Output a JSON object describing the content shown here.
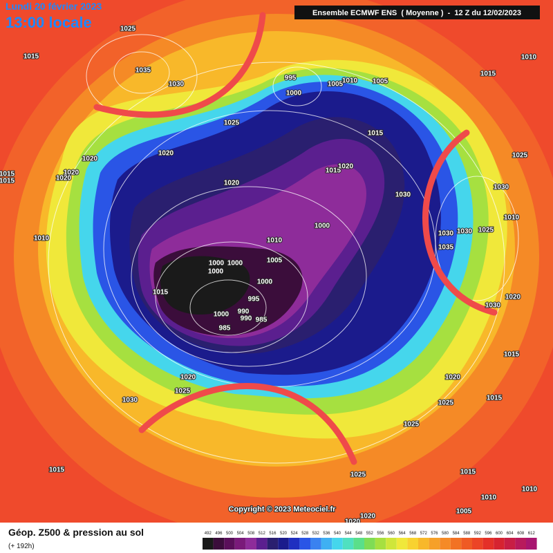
{
  "header": {
    "date": "Lundi 20 février 2023",
    "time": "13:00 locale",
    "run": "Ensemble ECMWF ENS  ( Moyenne )  -  12 Z du 12/02/2023"
  },
  "footer": {
    "title": "Géop. Z500 & pression au sol",
    "lead": "(+ 192h)",
    "copyright": "Copyright © 2023 Meteociel.fr"
  },
  "legend": {
    "values": [
      492,
      496,
      500,
      504,
      508,
      512,
      516,
      520,
      524,
      528,
      532,
      536,
      540,
      544,
      548,
      552,
      556,
      560,
      564,
      568,
      572,
      576,
      580,
      584,
      588,
      592,
      596,
      600,
      604,
      608,
      612
    ],
    "colors": [
      "#1a1a1a",
      "#3b0d3b",
      "#5a0f5a",
      "#7a1a7a",
      "#8e2c9a",
      "#5b1f8f",
      "#2a1f6f",
      "#1b1b8c",
      "#1f2fc0",
      "#2a55e6",
      "#3a82f0",
      "#3fb0f2",
      "#45d6ec",
      "#4fe0c0",
      "#5adf8a",
      "#7fdc55",
      "#a6e040",
      "#cfe63a",
      "#f0e83a",
      "#f8d230",
      "#f8b82a",
      "#f6a028",
      "#f58a26",
      "#f27224",
      "#ef5a24",
      "#ec4426",
      "#e43028",
      "#d62330",
      "#c81e44",
      "#b81a5c",
      "#a81670"
    ]
  },
  "isobar_labels": [
    "1025",
    "1015",
    "1035",
    "1030",
    "995",
    "1000",
    "1005",
    "1010",
    "1005",
    "1015",
    "1010",
    "1025",
    "1015",
    "1020",
    "1020",
    "1015",
    "1015",
    "1020",
    "1020",
    "1015",
    "1020",
    "1025",
    "1020",
    "1030",
    "1030",
    "1010",
    "1000",
    "1010",
    "1030",
    "1030",
    "1025",
    "1010",
    "1035",
    "1005",
    "1000",
    "1000",
    "1000",
    "1015",
    "1000",
    "995",
    "1000",
    "990",
    "990",
    "985",
    "985",
    "1020",
    "1030",
    "1015",
    "1020",
    "1020",
    "1025",
    "1030",
    "1015",
    "1025",
    "1025",
    "1015",
    "1025",
    "1015",
    "1010",
    "1010",
    "1005",
    "1020",
    "1020"
  ]
}
